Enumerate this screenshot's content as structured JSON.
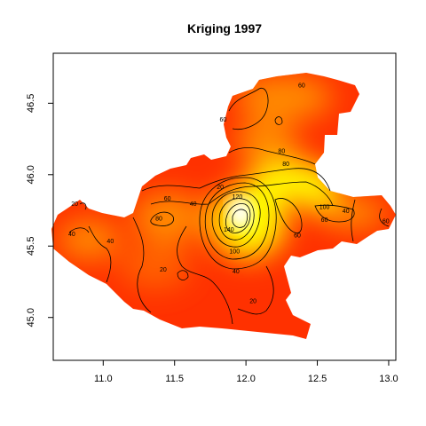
{
  "chart_data": {
    "type": "heatmap",
    "title": "Kriging 1997",
    "xlabel": "",
    "ylabel": "",
    "xlim": [
      10.65,
      13.05
    ],
    "ylim": [
      44.7,
      46.85
    ],
    "x_ticks": [
      11.0,
      11.5,
      12.0,
      12.5,
      13.0
    ],
    "x_tick_labels": [
      "11.0",
      "11.5",
      "12.0",
      "12.5",
      "13.0"
    ],
    "y_ticks": [
      45.0,
      45.5,
      46.0,
      46.5
    ],
    "y_tick_labels": [
      "45.0",
      "45.5",
      "46.0",
      "46.5"
    ],
    "colormap": {
      "low": "#ff0000",
      "mid": "#ff8c00",
      "high": "#ffff00",
      "peak": "#ffffff"
    },
    "contour_levels": [
      20,
      40,
      60,
      80,
      100,
      120,
      140
    ],
    "contour_labels": [
      {
        "text": "60",
        "x": 12.39,
        "y": 46.61
      },
      {
        "text": "60",
        "x": 11.84,
        "y": 46.37
      },
      {
        "text": "80",
        "x": 12.25,
        "y": 46.15
      },
      {
        "text": "80",
        "x": 12.28,
        "y": 46.06
      },
      {
        "text": "60",
        "x": 11.45,
        "y": 45.82
      },
      {
        "text": "20",
        "x": 11.82,
        "y": 45.9
      },
      {
        "text": "40",
        "x": 11.63,
        "y": 45.78
      },
      {
        "text": "80",
        "x": 11.39,
        "y": 45.68
      },
      {
        "text": "20",
        "x": 10.8,
        "y": 45.78
      },
      {
        "text": "40",
        "x": 10.78,
        "y": 45.57
      },
      {
        "text": "40",
        "x": 11.05,
        "y": 45.52
      },
      {
        "text": "120",
        "x": 11.94,
        "y": 45.83
      },
      {
        "text": "140",
        "x": 11.88,
        "y": 45.6
      },
      {
        "text": "100",
        "x": 11.92,
        "y": 45.45
      },
      {
        "text": "40",
        "x": 11.93,
        "y": 45.31
      },
      {
        "text": "20",
        "x": 11.42,
        "y": 45.32
      },
      {
        "text": "20",
        "x": 12.05,
        "y": 45.1
      },
      {
        "text": "100",
        "x": 12.55,
        "y": 45.76
      },
      {
        "text": "60",
        "x": 12.55,
        "y": 45.67
      },
      {
        "text": "40",
        "x": 12.7,
        "y": 45.73
      },
      {
        "text": "60",
        "x": 12.98,
        "y": 45.66
      },
      {
        "text": "60",
        "x": 12.36,
        "y": 45.56
      }
    ],
    "grid": false,
    "legend": "none"
  }
}
